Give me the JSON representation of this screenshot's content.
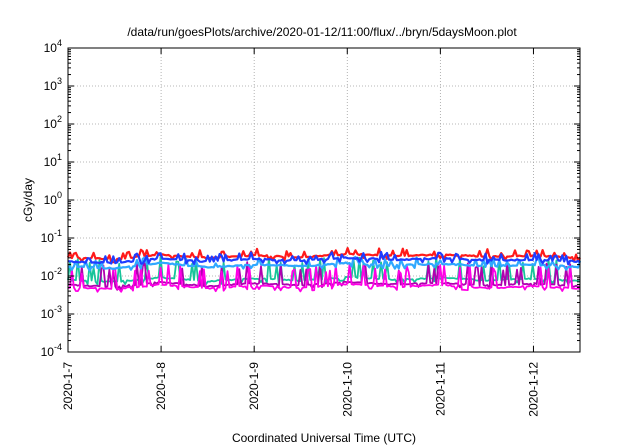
{
  "chart_data": {
    "type": "line",
    "title": "/data/run/goesPlots/archive/2020-01-12/11:00/flux/../bryn/5daysMoon.plot",
    "xlabel": "Coordinated Universal Time (UTC)",
    "ylabel": "cGy/day",
    "yscale": "log",
    "ylim": [
      0.0001,
      10000
    ],
    "xlim": [
      "2020-01-07",
      "2020-01-12 12:00"
    ],
    "grid": true,
    "yticks": [
      {
        "mant": "10",
        "exp": "-4"
      },
      {
        "mant": "10",
        "exp": "-3"
      },
      {
        "mant": "10",
        "exp": "-2"
      },
      {
        "mant": "10",
        "exp": "-1"
      },
      {
        "mant": "10",
        "exp": "0"
      },
      {
        "mant": "10",
        "exp": "1"
      },
      {
        "mant": "10",
        "exp": "2"
      },
      {
        "mant": "10",
        "exp": "3"
      },
      {
        "mant": "10",
        "exp": "4"
      }
    ],
    "xticks": [
      "2020-1-7",
      "2020-1-8",
      "2020-1-9",
      "2020-1-10",
      "2020-1-11",
      "2020-1-12"
    ],
    "series": [
      {
        "color": "#ff1a1a",
        "x": [
          "2020-01-07 00:00",
          "2020-01-07 12:00",
          "2020-01-08 00:00",
          "2020-01-08 12:00",
          "2020-01-09 00:00",
          "2020-01-09 12:00",
          "2020-01-10 00:00",
          "2020-01-10 12:00",
          "2020-01-11 00:00",
          "2020-01-11 12:00",
          "2020-01-12 00:00",
          "2020-01-12 12:00"
        ],
        "y": [
          0.031,
          0.028,
          0.036,
          0.03,
          0.035,
          0.031,
          0.038,
          0.034,
          0.036,
          0.033,
          0.034,
          0.03
        ]
      },
      {
        "color": "#1e3cff",
        "x": [
          "2020-01-07 00:00",
          "2020-01-07 12:00",
          "2020-01-08 00:00",
          "2020-01-08 12:00",
          "2020-01-09 00:00",
          "2020-01-09 12:00",
          "2020-01-10 00:00",
          "2020-01-10 12:00",
          "2020-01-11 00:00",
          "2020-01-11 12:00",
          "2020-01-12 00:00",
          "2020-01-12 12:00"
        ],
        "y": [
          0.024,
          0.022,
          0.029,
          0.024,
          0.028,
          0.025,
          0.03,
          0.027,
          0.029,
          0.026,
          0.027,
          0.024
        ]
      },
      {
        "color": "#2fa8ff",
        "x": [
          "2020-01-07 00:00",
          "2020-01-07 12:00",
          "2020-01-08 00:00",
          "2020-01-08 12:00",
          "2020-01-09 00:00",
          "2020-01-09 12:00",
          "2020-01-10 00:00",
          "2020-01-10 12:00",
          "2020-01-11 00:00",
          "2020-01-11 12:00",
          "2020-01-12 00:00",
          "2020-01-12 12:00"
        ],
        "y": [
          0.018,
          0.016,
          0.022,
          0.017,
          0.02,
          0.018,
          0.022,
          0.019,
          0.021,
          0.018,
          0.02,
          0.017
        ]
      },
      {
        "color": "#17c49a",
        "x": [
          "2020-01-07 00:00",
          "2020-01-07 12:00",
          "2020-01-08 00:00",
          "2020-01-08 12:00",
          "2020-01-09 00:00",
          "2020-01-09 12:00",
          "2020-01-10 00:00",
          "2020-01-10 12:00",
          "2020-01-11 00:00",
          "2020-01-11 12:00",
          "2020-01-12 00:00",
          "2020-01-12 12:00"
        ],
        "y": [
          0.0078,
          0.007,
          0.0092,
          0.0072,
          0.0086,
          0.0075,
          0.0094,
          0.008,
          0.009,
          0.0076,
          0.0085,
          0.0072
        ]
      },
      {
        "color": "#b000b0",
        "x": [
          "2020-01-07 00:00",
          "2020-01-07 12:00",
          "2020-01-08 00:00",
          "2020-01-08 12:00",
          "2020-01-09 00:00",
          "2020-01-09 12:00",
          "2020-01-10 00:00",
          "2020-01-10 12:00",
          "2020-01-11 00:00",
          "2020-01-11 12:00",
          "2020-01-12 00:00",
          "2020-01-12 12:00"
        ],
        "y": [
          0.0058,
          0.0052,
          0.0068,
          0.0054,
          0.0064,
          0.0056,
          0.007,
          0.006,
          0.0066,
          0.0056,
          0.0063,
          0.0053
        ]
      },
      {
        "color": "#ff00e6",
        "x": [
          "2020-01-07 00:00",
          "2020-01-07 12:00",
          "2020-01-08 00:00",
          "2020-01-08 12:00",
          "2020-01-09 00:00",
          "2020-01-09 12:00",
          "2020-01-10 00:00",
          "2020-01-10 12:00",
          "2020-01-11 00:00",
          "2020-01-11 12:00",
          "2020-01-12 00:00",
          "2020-01-12 12:00"
        ],
        "y": [
          0.005,
          0.0045,
          0.006,
          0.0047,
          0.0056,
          0.0048,
          0.0062,
          0.0052,
          0.0058,
          0.0048,
          0.0055,
          0.0046
        ]
      }
    ]
  }
}
